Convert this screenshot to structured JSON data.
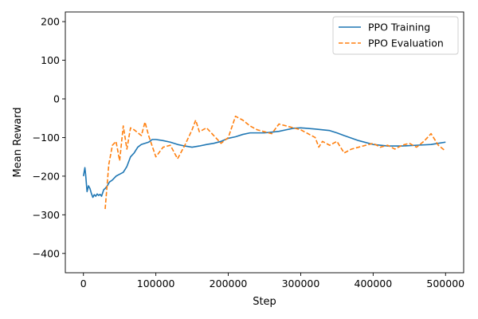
{
  "chart_data": {
    "type": "line",
    "title": "",
    "xlabel": "Step",
    "ylabel": "Mean Reward",
    "xlim": [
      -25000,
      525000
    ],
    "ylim": [
      -450,
      225
    ],
    "xticks": [
      0,
      100000,
      200000,
      300000,
      400000,
      500000
    ],
    "xtick_labels": [
      "0",
      "100000",
      "200000",
      "300000",
      "400000",
      "500000"
    ],
    "yticks": [
      200,
      100,
      0,
      -100,
      -200,
      -300,
      -400
    ],
    "ytick_labels": [
      "200",
      "100",
      "0",
      "−100",
      "−200",
      "−300",
      "−400"
    ],
    "grid": false,
    "legend_position": "top-right",
    "series": [
      {
        "name": "PPO Training",
        "color": "#1f77b4",
        "style": "solid",
        "x": [
          0,
          2000,
          3000,
          5000,
          7000,
          9000,
          11000,
          13000,
          15000,
          17000,
          19000,
          21000,
          23000,
          25000,
          28000,
          30000,
          33000,
          36000,
          40000,
          45000,
          50000,
          55000,
          60000,
          65000,
          70000,
          75000,
          80000,
          90000,
          95000,
          100000,
          110000,
          120000,
          130000,
          140000,
          150000,
          160000,
          170000,
          180000,
          190000,
          200000,
          210000,
          220000,
          230000,
          250000,
          260000,
          270000,
          280000,
          290000,
          300000,
          320000,
          340000,
          350000,
          360000,
          380000,
          400000,
          420000,
          440000,
          460000,
          480000,
          490000,
          500000
        ],
        "y": [
          -200,
          -178,
          -195,
          -240,
          -225,
          -232,
          -245,
          -255,
          -248,
          -252,
          -246,
          -250,
          -247,
          -252,
          -235,
          -232,
          -225,
          -215,
          -210,
          -200,
          -195,
          -190,
          -175,
          -150,
          -140,
          -125,
          -118,
          -112,
          -105,
          -105,
          -108,
          -112,
          -118,
          -122,
          -125,
          -122,
          -118,
          -115,
          -110,
          -102,
          -98,
          -92,
          -88,
          -88,
          -86,
          -84,
          -80,
          -76,
          -75,
          -78,
          -82,
          -88,
          -95,
          -108,
          -118,
          -122,
          -122,
          -120,
          -118,
          -115,
          -112
        ]
      },
      {
        "name": "PPO Evaluation",
        "color": "#ff7f0e",
        "style": "dashed",
        "x": [
          30000,
          35000,
          40000,
          45000,
          50000,
          55000,
          60000,
          65000,
          70000,
          80000,
          85000,
          90000,
          100000,
          110000,
          120000,
          130000,
          140000,
          150000,
          155000,
          160000,
          170000,
          180000,
          190000,
          200000,
          210000,
          220000,
          230000,
          240000,
          250000,
          260000,
          270000,
          280000,
          290000,
          300000,
          310000,
          320000,
          325000,
          330000,
          340000,
          350000,
          360000,
          370000,
          380000,
          390000,
          400000,
          410000,
          420000,
          430000,
          440000,
          450000,
          460000,
          470000,
          480000,
          490000,
          500000
        ],
        "y": [
          -285,
          -170,
          -120,
          -110,
          -160,
          -70,
          -130,
          -75,
          -80,
          -95,
          -60,
          -95,
          -150,
          -125,
          -120,
          -155,
          -120,
          -80,
          -55,
          -85,
          -75,
          -95,
          -115,
          -100,
          -45,
          -55,
          -70,
          -80,
          -85,
          -90,
          -65,
          -70,
          -75,
          -80,
          -90,
          -100,
          -125,
          -110,
          -120,
          -110,
          -140,
          -130,
          -125,
          -120,
          -115,
          -125,
          -120,
          -130,
          -120,
          -115,
          -125,
          -110,
          -90,
          -120,
          -135
        ]
      }
    ]
  }
}
